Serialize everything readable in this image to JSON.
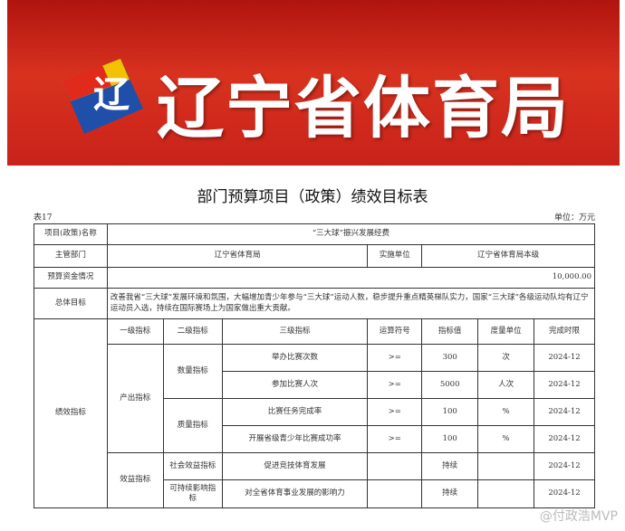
{
  "banner": {
    "title": "辽宁省体育局",
    "logo": "辽宁省体育局徽标"
  },
  "doc": {
    "title": "部门预算项目（政策）绩效目标表",
    "table_no": "表17",
    "unit": "单位：万元"
  },
  "info": {
    "project_label": "项目(政策)名称",
    "project": "“三大球”振兴发展经费",
    "dept_label": "主管部门",
    "dept": "辽宁省体育局",
    "impl_label": "实施单位",
    "impl": "辽宁省体育局本级",
    "budget_label": "预算资金情况",
    "budget": "10,000.00",
    "goal_label": "总体目标",
    "goal": "改善我省“三大球”发展环境和氛围，大幅增加青少年参与“三大球”运动人数，稳步提升重点精英梯队实力，国家“三大球”各级运动队均有辽宁运动员入选，持续在国际赛场上为国家做出重大贡献。"
  },
  "perf": {
    "label": "绩效指标",
    "headers": [
      "一级指标",
      "二级指标",
      "三级指标",
      "运算符号",
      "指标值",
      "度量单位",
      "完成时限"
    ],
    "level1": [
      "产出指标",
      "效益指标"
    ],
    "level2": [
      "数量指标",
      "质量指标",
      "社会效益指标",
      "可持续影响指标"
    ],
    "rows": [
      {
        "name": "举办比赛次数",
        "op": ">=",
        "value": "300",
        "unit": "次",
        "deadline": "2024-12"
      },
      {
        "name": "参加比赛人次",
        "op": ">=",
        "value": "5000",
        "unit": "人次",
        "deadline": "2024-12"
      },
      {
        "name": "比赛任务完成率",
        "op": ">=",
        "value": "100",
        "unit": "%",
        "deadline": "2024-12"
      },
      {
        "name": "开展省级青少年比赛成功率",
        "op": ">=",
        "value": "100",
        "unit": "%",
        "deadline": "2024-12"
      },
      {
        "name": "促进竞技体育发展",
        "op": "",
        "value": "持续",
        "unit": "",
        "deadline": "2024-12"
      },
      {
        "name": "对全省体育事业发展的影响力",
        "op": "",
        "value": "持续",
        "unit": "",
        "deadline": "2024-12"
      }
    ]
  },
  "watermark": "@付政浩MVP"
}
